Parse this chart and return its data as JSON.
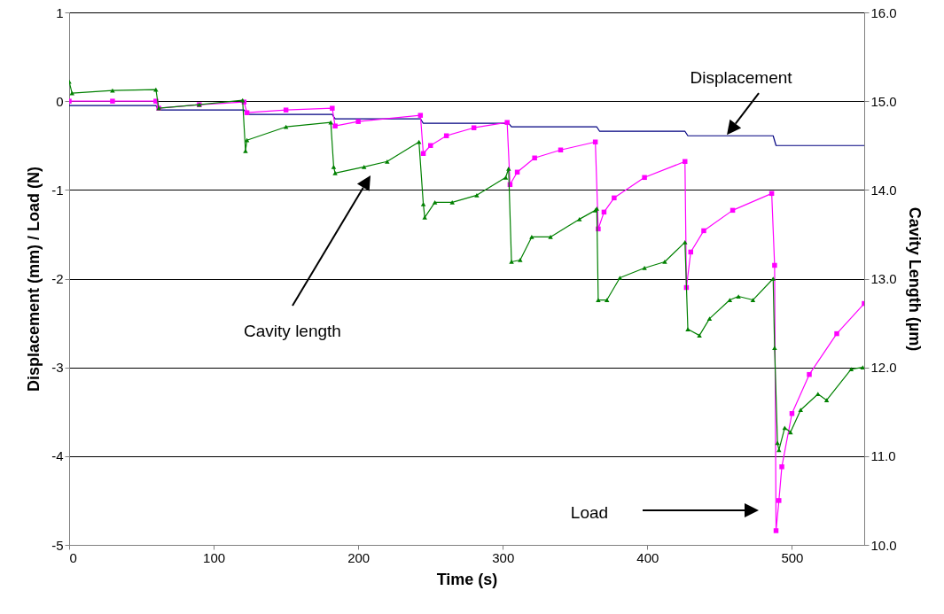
{
  "chart_data": {
    "type": "line",
    "xlabel": "Time (s)",
    "ylabel": "Displacement (mm) / Load (N)",
    "y2label": "Cavity Length (µm)",
    "xlim": [
      0,
      550
    ],
    "xticks": [
      0,
      100,
      200,
      300,
      400,
      500
    ],
    "ylim": [
      -5,
      1
    ],
    "yticks": [
      -5,
      -4,
      -3,
      -2,
      -1,
      0,
      1
    ],
    "y2lim": [
      10,
      16
    ],
    "y2ticks": [
      {
        "value": 10,
        "label": "10.0"
      },
      {
        "value": 11,
        "label": "11.0"
      },
      {
        "value": 12,
        "label": "12.0"
      },
      {
        "value": 13,
        "label": "13.0"
      },
      {
        "value": 14,
        "label": "14.0"
      },
      {
        "value": 15,
        "label": "15.0"
      },
      {
        "value": 16,
        "label": "16.0"
      }
    ],
    "grid": "y",
    "line_style": "solid",
    "annotations": [
      {
        "text": "Displacement",
        "x": 455,
        "y": -0.38
      },
      "Cavity length",
      "Load"
    ],
    "series": [
      {
        "color": "#000080",
        "x": [
          0,
          60,
          62,
          121,
          123,
          182,
          184,
          243,
          245,
          304,
          306,
          365,
          367,
          426,
          428,
          487,
          489,
          550
        ],
        "values": [
          -0.05,
          -0.05,
          -0.1,
          -0.1,
          -0.15,
          -0.15,
          -0.2,
          -0.2,
          -0.25,
          -0.25,
          -0.29,
          -0.29,
          -0.34,
          -0.34,
          -0.39,
          -0.39,
          -0.5,
          -0.5
        ]
      },
      {
        "color": "#ff00ff",
        "marker": "square",
        "x": [
          0,
          30,
          60,
          62,
          90,
          121,
          123,
          150,
          182,
          184,
          200,
          243,
          245,
          250,
          261,
          280,
          303,
          305,
          310,
          322,
          340,
          364,
          366,
          370,
          377,
          398,
          426,
          427,
          430,
          439,
          459,
          486,
          488,
          489,
          491,
          493,
          500,
          512,
          531,
          550
        ],
        "values": [
          0.0,
          0.0,
          0.0,
          -0.08,
          -0.04,
          -0.01,
          -0.13,
          -0.1,
          -0.08,
          -0.28,
          -0.23,
          -0.16,
          -0.59,
          -0.5,
          -0.39,
          -0.3,
          -0.24,
          -0.94,
          -0.8,
          -0.64,
          -0.55,
          -0.46,
          -1.44,
          -1.25,
          -1.09,
          -0.86,
          -0.68,
          -2.1,
          -1.7,
          -1.46,
          -1.23,
          -1.04,
          -1.85,
          -4.84,
          -4.5,
          -4.12,
          -3.52,
          -3.08,
          -2.62,
          -2.28
        ]
      },
      {
        "color": "#008000",
        "marker": "triangle",
        "axis": "y2",
        "x": [
          0,
          2,
          30,
          60,
          62,
          90,
          120,
          122,
          123,
          150,
          181,
          183,
          184,
          204,
          220,
          242,
          245,
          246,
          253,
          265,
          282,
          302,
          304,
          306,
          312,
          320,
          333,
          353,
          364,
          365,
          366,
          372,
          381,
          398,
          412,
          426,
          428,
          436,
          443,
          457,
          463,
          473,
          487,
          488,
          490,
          491,
          495,
          499,
          506,
          518,
          524,
          541,
          549
        ],
        "values": [
          15.22,
          15.09,
          15.12,
          15.13,
          14.92,
          14.96,
          15.01,
          14.44,
          14.56,
          14.71,
          14.76,
          14.26,
          14.19,
          14.26,
          14.32,
          14.54,
          13.84,
          13.69,
          13.86,
          13.86,
          13.94,
          14.14,
          14.24,
          13.19,
          13.21,
          13.47,
          13.47,
          13.67,
          13.77,
          13.79,
          12.76,
          12.76,
          13.01,
          13.12,
          13.19,
          13.41,
          12.43,
          12.36,
          12.55,
          12.76,
          12.8,
          12.76,
          13.0,
          12.22,
          11.15,
          11.07,
          11.32,
          11.27,
          11.52,
          11.7,
          11.63,
          11.98,
          12.0
        ]
      }
    ]
  }
}
